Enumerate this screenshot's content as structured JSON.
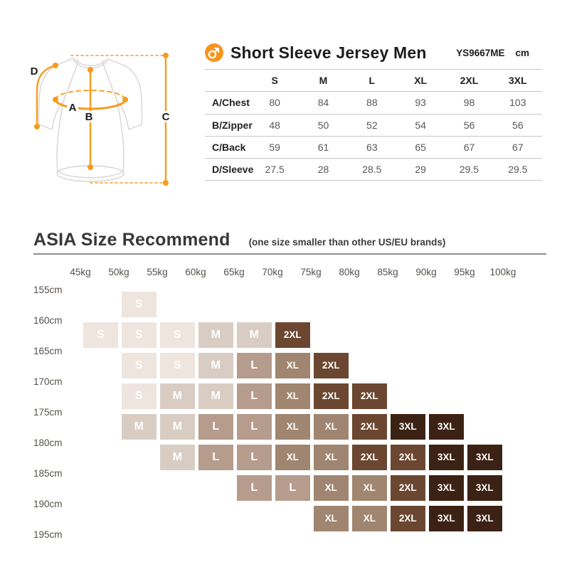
{
  "colors": {
    "accent": "#F7941E",
    "outline": "#D7D4D1",
    "size_colors": {
      "S": "#EDE5DE",
      "M": "#D9CDC3",
      "L": "#B59C8D",
      "XL": "#A08670",
      "2XL": "#6B4731",
      "3XL": "#3C2214"
    }
  },
  "diagram": {
    "labels": {
      "a": "A",
      "b": "B",
      "c": "C",
      "d": "D"
    }
  },
  "recommend": {
    "heading": "ASIA Size Recommend",
    "subheading": "(one size smaller than other US/EU brands)"
  },
  "chart_data": [
    {
      "type": "table",
      "title": "Short Sleeve Jersey Men",
      "code": "YS9667ME",
      "unit": "cm",
      "columns": [
        "S",
        "M",
        "L",
        "XL",
        "2XL",
        "3XL"
      ],
      "rows": [
        {
          "label": "A/Chest",
          "values": [
            "80",
            "84",
            "88",
            "93",
            "98",
            "103"
          ]
        },
        {
          "label": "B/Zipper",
          "values": [
            "48",
            "50",
            "52",
            "54",
            "56",
            "56"
          ]
        },
        {
          "label": "C/Back",
          "values": [
            "59",
            "61",
            "63",
            "65",
            "67",
            "67"
          ]
        },
        {
          "label": "D/Sleeve",
          "values": [
            "27.5",
            "28",
            "28.5",
            "29",
            "29.5",
            "29.5"
          ]
        }
      ]
    },
    {
      "type": "heatmap",
      "title": "ASIA Size Recommend",
      "subtitle": "(one size smaller than other US/EU brands)",
      "x_ticks": [
        "45kg",
        "50kg",
        "55kg",
        "60kg",
        "65kg",
        "70kg",
        "75kg",
        "80kg",
        "85kg",
        "90kg",
        "95kg",
        "100kg"
      ],
      "y_ticks": [
        "155cm",
        "160cm",
        "165cm",
        "170cm",
        "175cm",
        "180cm",
        "185cm",
        "190cm",
        "195cm"
      ],
      "matrix": [
        [
          null,
          "S",
          null,
          null,
          null,
          null,
          null,
          null,
          null,
          null,
          null
        ],
        [
          "S",
          "S",
          "S",
          "M",
          "M",
          "2XL",
          null,
          null,
          null,
          null,
          null
        ],
        [
          null,
          "S",
          "S",
          "M",
          "L",
          "XL",
          "2XL",
          null,
          null,
          null,
          null
        ],
        [
          null,
          "S",
          "M",
          "M",
          "L",
          "XL",
          "2XL",
          "2XL",
          null,
          null,
          null
        ],
        [
          null,
          "M",
          "M",
          "L",
          "L",
          "XL",
          "XL",
          "2XL",
          "3XL",
          "3XL",
          null
        ],
        [
          null,
          null,
          "M",
          "L",
          "L",
          "XL",
          "XL",
          "2XL",
          "2XL",
          "3XL",
          "3XL"
        ],
        [
          null,
          null,
          null,
          null,
          "L",
          "L",
          "XL",
          "XL",
          "2XL",
          "3XL",
          "3XL"
        ],
        [
          null,
          null,
          null,
          null,
          null,
          null,
          "XL",
          "XL",
          "2XL",
          "3XL",
          "3XL"
        ]
      ],
      "legend": [
        "S",
        "M",
        "L",
        "XL",
        "2XL",
        "3XL"
      ],
      "cell_colors": {
        "S": "#EDE5DE",
        "M": "#D9CDC3",
        "L": "#B59C8D",
        "XL": "#A08670",
        "2XL": "#6B4731",
        "3XL": "#3C2214"
      }
    }
  ]
}
